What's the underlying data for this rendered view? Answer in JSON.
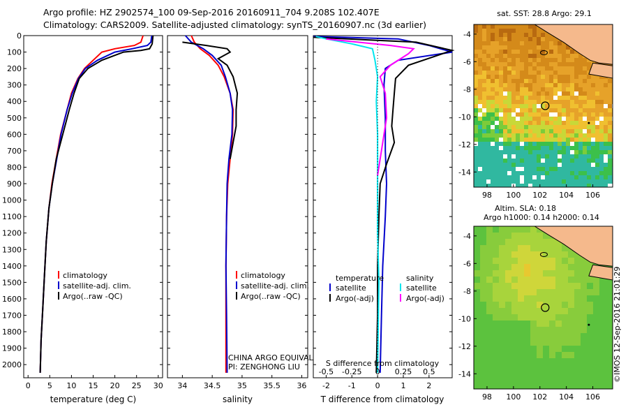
{
  "header": {
    "line1": "Argo profile: HZ 2902574_100 09-Sep-2016 20160911_704 9.208S 102.407E",
    "line2": "Climatology: CARS2009. Satellite-adjusted climatology: synTS_20160907.nc (3d earlier)"
  },
  "colors": {
    "climatology": "#ff0000",
    "satellite": "#0000cc",
    "argo": "#000000",
    "sat_salinity": "#00e5ee",
    "argo_salinity": "#ff00ff",
    "land": "#f5b98c"
  },
  "chart_data": [
    {
      "type": "line",
      "id": "temperature",
      "xlabel": "temperature (deg C)",
      "ylabel": "",
      "xlim": [
        -1,
        31
      ],
      "ylim": [
        2080,
        0
      ],
      "xticks": [
        0,
        5,
        10,
        15,
        20,
        25,
        30
      ],
      "yticks": [
        0,
        100,
        200,
        300,
        400,
        500,
        600,
        700,
        800,
        900,
        1000,
        1100,
        1200,
        1300,
        1400,
        1500,
        1600,
        1700,
        1800,
        1900,
        2000
      ],
      "legend": [
        "climatology",
        "satellite-adj. clim.",
        "Argo(..raw -QC)"
      ],
      "series": [
        {
          "name": "climatology",
          "color": "#ff0000",
          "points": [
            [
              26.5,
              0
            ],
            [
              26.0,
              40
            ],
            [
              24.5,
              60
            ],
            [
              20,
              80
            ],
            [
              17,
              100
            ],
            [
              15,
              150
            ],
            [
              13,
              200
            ],
            [
              11.5,
              260
            ],
            [
              10,
              350
            ],
            [
              9,
              450
            ],
            [
              7.5,
              600
            ],
            [
              6.5,
              750
            ],
            [
              5.5,
              900
            ],
            [
              4.8,
              1050
            ],
            [
              4.2,
              1250
            ],
            [
              3.8,
              1450
            ],
            [
              3.4,
              1650
            ],
            [
              3.0,
              1850
            ],
            [
              2.8,
              2050
            ]
          ]
        },
        {
          "name": "satellite-adj. clim.",
          "color": "#0000cc",
          "points": [
            [
              28.5,
              0
            ],
            [
              28.3,
              40
            ],
            [
              27.5,
              60
            ],
            [
              24,
              80
            ],
            [
              20,
              100
            ],
            [
              16,
              150
            ],
            [
              13.2,
              200
            ],
            [
              11.6,
              260
            ],
            [
              10.2,
              350
            ],
            [
              9,
              450
            ],
            [
              7.6,
              600
            ],
            [
              6.6,
              750
            ],
            [
              5.6,
              900
            ],
            [
              4.8,
              1050
            ],
            [
              4.2,
              1250
            ],
            [
              3.8,
              1450
            ],
            [
              3.4,
              1650
            ],
            [
              3.0,
              1850
            ],
            [
              2.8,
              2050
            ]
          ]
        },
        {
          "name": "Argo(..raw -QC)",
          "color": "#000000",
          "points": [
            [
              28.8,
              0
            ],
            [
              28.6,
              50
            ],
            [
              28.0,
              80
            ],
            [
              26,
              90
            ],
            [
              22,
              100
            ],
            [
              17,
              150
            ],
            [
              13.8,
              200
            ],
            [
              11.8,
              260
            ],
            [
              10.6,
              350
            ],
            [
              9.5,
              450
            ],
            [
              8.0,
              600
            ],
            [
              6.5,
              750
            ],
            [
              5.6,
              900
            ],
            [
              4.8,
              1050
            ],
            [
              4.2,
              1250
            ],
            [
              3.8,
              1450
            ],
            [
              3.4,
              1650
            ],
            [
              3.0,
              1850
            ],
            [
              2.8,
              2050
            ]
          ]
        }
      ]
    },
    {
      "type": "line",
      "id": "salinity",
      "xlabel": "salinity",
      "xlim": [
        33.75,
        36.1
      ],
      "ylim": [
        2080,
        0
      ],
      "xticks": [
        34,
        34.5,
        35,
        35.5,
        36
      ],
      "legend": [
        "climatology",
        "satellite-adj. clim.",
        "Argo(..raw -QC)"
      ],
      "series": [
        {
          "name": "climatology",
          "color": "#ff0000",
          "points": [
            [
              34.15,
              0
            ],
            [
              34.2,
              40
            ],
            [
              34.3,
              80
            ],
            [
              34.45,
              120
            ],
            [
              34.6,
              180
            ],
            [
              34.7,
              250
            ],
            [
              34.8,
              350
            ],
            [
              34.85,
              450
            ],
            [
              34.84,
              600
            ],
            [
              34.8,
              750
            ],
            [
              34.76,
              900
            ],
            [
              34.74,
              1100
            ],
            [
              34.73,
              1400
            ],
            [
              34.73,
              1700
            ],
            [
              34.73,
              2050
            ]
          ]
        },
        {
          "name": "satellite-adj. clim.",
          "color": "#0000cc",
          "points": [
            [
              34.05,
              0
            ],
            [
              34.15,
              40
            ],
            [
              34.35,
              80
            ],
            [
              34.5,
              120
            ],
            [
              34.65,
              180
            ],
            [
              34.72,
              250
            ],
            [
              34.8,
              350
            ],
            [
              34.84,
              450
            ],
            [
              34.83,
              600
            ],
            [
              34.78,
              750
            ],
            [
              34.75,
              900
            ],
            [
              34.74,
              1100
            ],
            [
              34.73,
              1400
            ],
            [
              34.74,
              1700
            ],
            [
              34.75,
              2050
            ]
          ]
        },
        {
          "name": "Argo(..raw -QC)",
          "color": "#000000",
          "points": [
            [
              34.0,
              40
            ],
            [
              34.4,
              60
            ],
            [
              34.75,
              80
            ],
            [
              34.8,
              100
            ],
            [
              34.6,
              140
            ],
            [
              34.75,
              180
            ],
            [
              34.85,
              250
            ],
            [
              34.92,
              350
            ],
            [
              34.9,
              450
            ],
            [
              34.9,
              550
            ],
            [
              34.85,
              650
            ],
            [
              34.8,
              750
            ]
          ]
        }
      ],
      "annotation": [
        "CHINA ARGO EQUIVALENT",
        "PI: ZENGHONG LIU"
      ]
    },
    {
      "type": "line",
      "id": "differences",
      "xlabel_bottom": "T difference from climatology",
      "xlabel_top": "S difference from climatology",
      "xlim": [
        -2.5,
        2.9
      ],
      "ylim": [
        2080,
        0
      ],
      "xticks_T": [
        -2,
        -1,
        0,
        1,
        2
      ],
      "xticks_S": [
        -0.5,
        -0.25,
        0,
        0.25,
        0.5
      ],
      "legend_temperature": {
        "title": "temperature",
        "items": [
          "satellite",
          "Argo(-adj)"
        ]
      },
      "legend_salinity": {
        "title": "salinity",
        "items": [
          "satellite",
          "Argo(-adj)"
        ]
      },
      "series": [
        {
          "name": "temperature satellite",
          "color": "#0000cc",
          "points": [
            [
              -2.5,
              5
            ],
            [
              0.8,
              20
            ],
            [
              2.0,
              60
            ],
            [
              2.9,
              100
            ],
            [
              0.8,
              150
            ],
            [
              0.3,
              200
            ],
            [
              0.25,
              300
            ],
            [
              0.3,
              500
            ],
            [
              0.3,
              700
            ],
            [
              0.35,
              900
            ],
            [
              0.3,
              1100
            ],
            [
              0.2,
              1400
            ],
            [
              0.15,
              1700
            ],
            [
              0.1,
              2050
            ]
          ]
        },
        {
          "name": "temperature Argo(-adj)",
          "color": "#000000",
          "points": [
            [
              -2.5,
              10
            ],
            [
              1.5,
              40
            ],
            [
              2.9,
              90
            ],
            [
              1.2,
              180
            ],
            [
              0.7,
              260
            ],
            [
              0.65,
              350
            ],
            [
              0.6,
              450
            ],
            [
              0.55,
              550
            ],
            [
              0.65,
              650
            ],
            [
              0.35,
              780
            ],
            [
              0.1,
              900
            ],
            [
              0.05,
              1100
            ],
            [
              0.0,
              1400
            ],
            [
              0.0,
              1700
            ],
            [
              -0.05,
              2050
            ]
          ]
        },
        {
          "name": "salinity satellite",
          "color": "#00e5ee",
          "points": [
            [
              -2.4,
              5
            ],
            [
              -2.0,
              20
            ],
            [
              -1.0,
              50
            ],
            [
              -0.2,
              80
            ],
            [
              -0.1,
              150
            ],
            [
              0.0,
              250
            ],
            [
              -0.05,
              400
            ],
            [
              0.0,
              600
            ],
            [
              0.0,
              800
            ],
            [
              0.0,
              1200
            ],
            [
              0.05,
              1500
            ],
            [
              0.0,
              2050
            ]
          ]
        },
        {
          "name": "salinity Argo(-adj)",
          "color": "#ff00ff",
          "points": [
            [
              -2.0,
              20
            ],
            [
              0.5,
              60
            ],
            [
              1.4,
              80
            ],
            [
              1.2,
              110
            ],
            [
              0.5,
              180
            ],
            [
              0.1,
              250
            ],
            [
              0.3,
              350
            ],
            [
              0.35,
              500
            ],
            [
              0.2,
              650
            ],
            [
              0.1,
              750
            ],
            [
              0.0,
              850
            ]
          ]
        }
      ]
    },
    {
      "type": "heatmap",
      "id": "sst_map",
      "title": "sat. SST: 28.8 Argo: 29.1",
      "xticks": [
        98,
        100,
        102,
        104,
        106
      ],
      "yticks": [
        -4,
        -6,
        -8,
        -10,
        -12,
        -14
      ],
      "xlim": [
        97,
        107.5
      ],
      "ylim": [
        -15.1,
        -3.3
      ],
      "marker": {
        "lon": 102.4,
        "lat": -9.2
      }
    },
    {
      "type": "heatmap",
      "id": "sla_map",
      "title": "Altim. SLA: 0.18",
      "subtitle": "Argo h1000: 0.14 h2000: 0.14",
      "xticks": [
        98,
        100,
        102,
        104,
        106
      ],
      "yticks": [
        -4,
        -6,
        -8,
        -10,
        -12,
        -14
      ],
      "xlim": [
        97,
        107.5
      ],
      "ylim": [
        -15.1,
        -3.3
      ],
      "marker": {
        "lon": 102.4,
        "lat": -9.2
      }
    }
  ],
  "stamp": "©IMOS 12-Sep-2016 21:01:29"
}
